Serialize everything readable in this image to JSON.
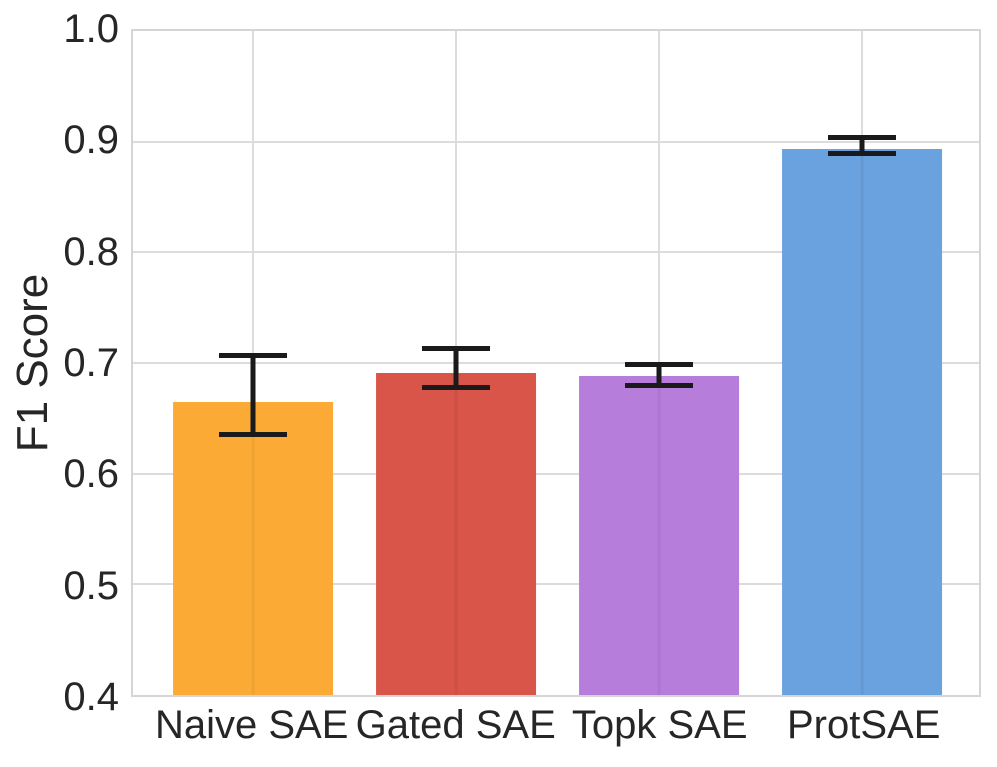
{
  "chart_data": {
    "type": "bar",
    "title": "",
    "xlabel": "",
    "ylabel": "F1 Score",
    "categories": [
      "Naive SAE",
      "Gated SAE",
      "Topk SAE",
      "ProtSAE"
    ],
    "values": [
      0.665,
      0.691,
      0.688,
      0.893
    ],
    "error_upper": [
      0.709,
      0.715,
      0.701,
      0.906
    ],
    "error_lower": [
      0.633,
      0.676,
      0.677,
      0.887
    ],
    "bar_colors": [
      "#FBAB35",
      "#D9554A",
      "#B77DDB",
      "#6AA1DF"
    ],
    "ylim": [
      0.4,
      1.0
    ],
    "yticks": [
      1.0,
      0.9,
      0.8,
      0.7,
      0.6,
      0.5,
      0.4
    ],
    "ytick_labels": [
      "1.0",
      "0.9",
      "0.8",
      "0.7",
      "0.6",
      "0.5",
      "0.4"
    ],
    "grid": true,
    "legend_position": "none",
    "errorbar_color": "#1A1A1A",
    "grid_color": "#DCDCDC",
    "spine_color": "#D5D5D5",
    "text_color": "#262626"
  }
}
